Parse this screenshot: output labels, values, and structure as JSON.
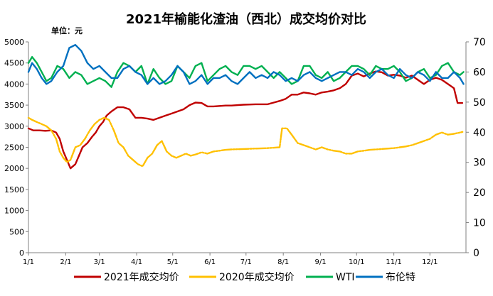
{
  "chart_data": {
    "type": "line",
    "title": "2021年榆能化渣油（西北）成交均价对比",
    "unit_label": "单位：元",
    "x_ticks": [
      "1/1",
      "2/1",
      "3/1",
      "4/1",
      "5/1",
      "6/1",
      "7/1",
      "8/1",
      "9/1",
      "10/1",
      "11/1",
      "12/1"
    ],
    "y_left": {
      "ticks": [
        0,
        500,
        1000,
        1500,
        2000,
        2500,
        3000,
        3500,
        4000,
        4500,
        5000
      ],
      "lim": [
        0,
        5000
      ]
    },
    "y_right": {
      "ticks": [
        0,
        10,
        20,
        30,
        40,
        50,
        60,
        70
      ],
      "lim": [
        0,
        70
      ]
    },
    "grid": false,
    "legend_position": "bottom",
    "series": [
      {
        "name": "2021年成交均价",
        "axis": "left",
        "color": "#C00000",
        "style": "solid",
        "x": [
          1,
          5,
          10,
          15,
          20,
          24,
          27,
          30,
          33,
          36,
          40,
          43,
          46,
          50,
          54,
          57,
          60,
          63,
          66,
          70,
          75,
          80,
          85,
          90,
          95,
          100,
          105,
          110,
          115,
          120,
          125,
          130,
          135,
          140,
          145,
          150,
          155,
          160,
          165,
          170,
          175,
          180,
          190,
          200,
          210,
          215,
          220,
          225,
          230,
          235,
          240,
          245,
          250,
          255,
          260,
          265,
          270,
          275,
          280,
          285,
          290,
          295,
          300,
          305,
          310,
          315,
          320,
          325,
          330,
          335,
          340,
          345,
          350,
          355,
          358,
          362
        ],
        "y": [
          2950,
          2900,
          2900,
          2890,
          2900,
          2850,
          2700,
          2400,
          2200,
          2000,
          2100,
          2300,
          2500,
          2600,
          2750,
          2850,
          3000,
          3100,
          3250,
          3350,
          3450,
          3450,
          3400,
          3200,
          3200,
          3180,
          3150,
          3200,
          3250,
          3300,
          3350,
          3400,
          3500,
          3560,
          3550,
          3470,
          3470,
          3480,
          3490,
          3490,
          3500,
          3510,
          3520,
          3520,
          3600,
          3650,
          3750,
          3750,
          3800,
          3780,
          3750,
          3800,
          3820,
          3850,
          3900,
          4000,
          4200,
          4250,
          4180,
          4250,
          4300,
          4280,
          4200,
          4220,
          4200,
          4150,
          4200,
          4100,
          4000,
          4100,
          4150,
          4100,
          4000,
          3900,
          3550,
          3550
        ]
      },
      {
        "name": "2020年成交均价",
        "axis": "left",
        "color": "#FFC000",
        "style": "dotted-solid",
        "x": [
          1,
          4,
          8,
          12,
          16,
          20,
          24,
          27,
          30,
          33,
          36,
          40,
          44,
          48,
          52,
          56,
          60,
          64,
          68,
          72,
          76,
          80,
          84,
          88,
          92,
          96,
          100,
          104,
          108,
          112,
          116,
          120,
          124,
          128,
          132,
          136,
          140,
          145,
          150,
          155,
          160,
          165,
          170,
          180,
          190,
          200,
          210,
          212,
          216,
          220,
          225,
          230,
          235,
          240,
          245,
          250,
          255,
          260,
          265,
          270,
          275,
          280,
          285,
          290,
          295,
          300,
          305,
          310,
          315,
          320,
          325,
          330,
          335,
          340,
          345,
          350,
          355,
          360,
          363
        ],
        "y": [
          3200,
          3150,
          3100,
          3050,
          3000,
          2900,
          2700,
          2400,
          2250,
          2150,
          2200,
          2500,
          2550,
          2700,
          2900,
          3050,
          3150,
          3200,
          3150,
          2900,
          2600,
          2500,
          2300,
          2200,
          2100,
          2050,
          2250,
          2350,
          2550,
          2650,
          2400,
          2300,
          2250,
          2300,
          2350,
          2300,
          2330,
          2380,
          2350,
          2400,
          2420,
          2440,
          2450,
          2460,
          2470,
          2480,
          2500,
          2950,
          2950,
          2800,
          2600,
          2550,
          2500,
          2450,
          2500,
          2450,
          2420,
          2400,
          2350,
          2350,
          2400,
          2420,
          2440,
          2450,
          2460,
          2470,
          2480,
          2500,
          2520,
          2550,
          2600,
          2650,
          2700,
          2800,
          2850,
          2800,
          2820,
          2850,
          2870
        ]
      },
      {
        "name": "WTI",
        "axis": "right",
        "color": "#00B050",
        "style": "solid",
        "x": [
          1,
          4,
          8,
          12,
          16,
          20,
          25,
          30,
          35,
          40,
          45,
          50,
          55,
          60,
          65,
          70,
          75,
          80,
          85,
          90,
          95,
          100,
          105,
          110,
          115,
          120,
          125,
          130,
          135,
          140,
          145,
          150,
          155,
          160,
          165,
          170,
          175,
          180,
          185,
          190,
          195,
          200,
          205,
          210,
          215,
          220,
          225,
          230,
          235,
          240,
          245,
          250,
          255,
          260,
          265,
          270,
          275,
          280,
          285,
          290,
          295,
          300,
          305,
          310,
          315,
          320,
          325,
          330,
          335,
          340,
          345,
          350,
          355,
          360,
          363
        ],
        "y": [
          63,
          65,
          63,
          60,
          57,
          58,
          62,
          61,
          58,
          60,
          59,
          56,
          57,
          58,
          57,
          55,
          60,
          63,
          62,
          60,
          62,
          56,
          61,
          58,
          56,
          57,
          62,
          60,
          58,
          62,
          63,
          57,
          59,
          61,
          62,
          60,
          59,
          62,
          62,
          61,
          62,
          60,
          58,
          60,
          58,
          56,
          57,
          62,
          62,
          59,
          58,
          60,
          57,
          58,
          60,
          62,
          62,
          61,
          59,
          62,
          61,
          61,
          62,
          60,
          57,
          58,
          60,
          61,
          58,
          59,
          62,
          63,
          60,
          59,
          60
        ]
      },
      {
        "name": "布伦特",
        "axis": "right",
        "color": "#0070C0",
        "style": "solid",
        "x": [
          1,
          4,
          8,
          12,
          16,
          20,
          25,
          30,
          35,
          40,
          45,
          50,
          55,
          60,
          65,
          70,
          75,
          80,
          85,
          90,
          95,
          100,
          105,
          110,
          115,
          120,
          125,
          130,
          135,
          140,
          145,
          150,
          155,
          160,
          165,
          170,
          175,
          180,
          185,
          190,
          195,
          200,
          205,
          210,
          215,
          220,
          225,
          230,
          235,
          240,
          245,
          250,
          255,
          260,
          265,
          270,
          275,
          280,
          285,
          290,
          295,
          300,
          305,
          310,
          315,
          320,
          325,
          330,
          335,
          340,
          345,
          350,
          355,
          360,
          363
        ],
        "y": [
          60,
          63,
          61,
          58,
          56,
          57,
          60,
          62,
          68,
          69,
          67,
          63,
          61,
          62,
          60,
          58,
          58,
          61,
          62,
          60,
          59,
          56,
          58,
          56,
          57,
          59,
          62,
          60,
          56,
          57,
          59,
          56,
          58,
          58,
          59,
          57,
          56,
          58,
          60,
          58,
          59,
          58,
          60,
          59,
          57,
          58,
          57,
          59,
          60,
          58,
          57,
          58,
          59,
          60,
          60,
          59,
          61,
          60,
          58,
          60,
          61,
          59,
          58,
          61,
          59,
          58,
          60,
          59,
          57,
          60,
          58,
          58,
          60,
          58,
          56
        ]
      }
    ]
  }
}
